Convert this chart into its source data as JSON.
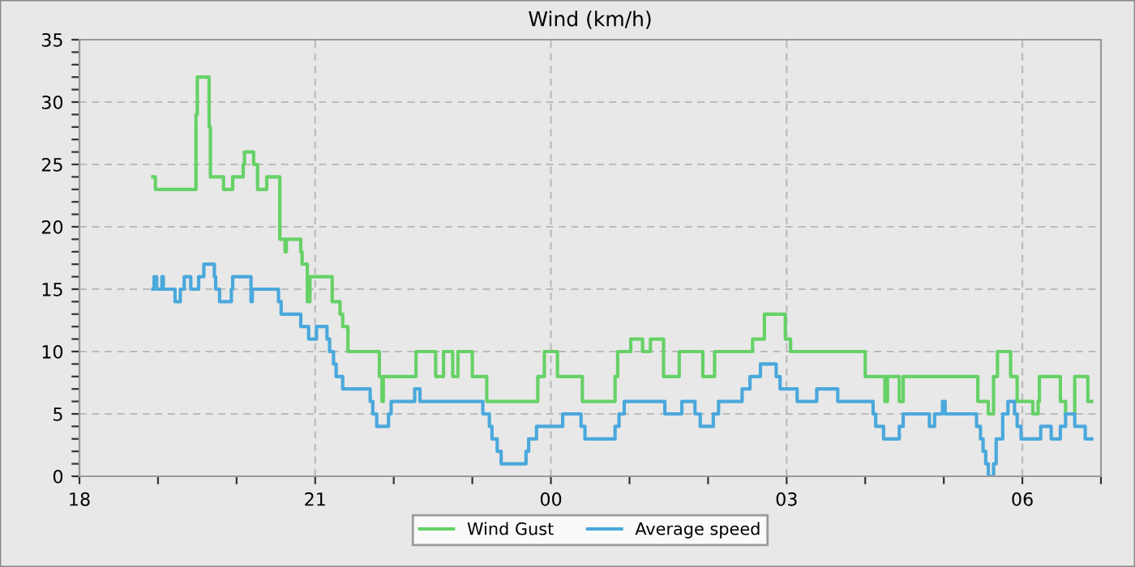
{
  "chart_data": {
    "type": "step",
    "title": "Wind (km/h)",
    "xlim": [
      "2000-01-01T18:00",
      "2000-01-02T07:00"
    ],
    "ylim": [
      0,
      35
    ],
    "xticks": [
      {
        "value": "2000-01-01T18:00",
        "label": "18"
      },
      {
        "value": "2000-01-01T19:00",
        "label": null
      },
      {
        "value": "2000-01-01T20:00",
        "label": null
      },
      {
        "value": "2000-01-01T21:00",
        "label": "21"
      },
      {
        "value": "2000-01-01T22:00",
        "label": null
      },
      {
        "value": "2000-01-01T23:00",
        "label": null
      },
      {
        "value": "2000-01-02T00:00",
        "label": "00"
      },
      {
        "value": "2000-01-02T01:00",
        "label": null
      },
      {
        "value": "2000-01-02T02:00",
        "label": null
      },
      {
        "value": "2000-01-02T03:00",
        "label": "03"
      },
      {
        "value": "2000-01-02T04:00",
        "label": null
      },
      {
        "value": "2000-01-02T05:00",
        "label": null
      },
      {
        "value": "2000-01-02T06:00",
        "label": "06"
      },
      {
        "value": "2000-01-02T07:00",
        "label": null
      }
    ],
    "yticks": [
      0,
      {
        "value": 1,
        "label": null
      },
      {
        "value": 2,
        "label": null
      },
      {
        "value": 3,
        "label": null
      },
      {
        "value": 4,
        "label": null
      },
      5,
      {
        "value": 6,
        "label": null
      },
      {
        "value": 7,
        "label": null
      },
      {
        "value": 8,
        "label": null
      },
      {
        "value": 9,
        "label": null
      },
      10,
      {
        "value": 11,
        "label": null
      },
      {
        "value": 12,
        "label": null
      },
      {
        "value": 13,
        "label": null
      },
      {
        "value": 14,
        "label": null
      },
      15,
      {
        "value": 16,
        "label": null
      },
      {
        "value": 17,
        "label": null
      },
      {
        "value": 18,
        "label": null
      },
      {
        "value": 19,
        "label": null
      },
      20,
      {
        "value": 21,
        "label": null
      },
      {
        "value": 22,
        "label": null
      },
      {
        "value": 23,
        "label": null
      },
      {
        "value": 24,
        "label": null
      },
      25,
      {
        "value": 26,
        "label": null
      },
      {
        "value": 27,
        "label": null
      },
      {
        "value": 28,
        "label": null
      },
      {
        "value": 29,
        "label": null
      },
      30,
      {
        "value": 31,
        "label": null
      },
      {
        "value": 32,
        "label": null
      },
      {
        "value": 33,
        "label": null
      },
      {
        "value": 34,
        "label": null
      },
      35
    ],
    "grid": true,
    "legend": "bottom",
    "line_style": "solid",
    "marker": "none",
    "series": [
      {
        "name": "Wind Gust",
        "color": "#66d166",
        "x": [
          "2000-01-01T18:56",
          "2000-01-01T18:58",
          "2000-01-01T19:29",
          "2000-01-01T19:30",
          "2000-01-01T19:39",
          "2000-01-01T19:40",
          "2000-01-01T19:50",
          "2000-01-01T19:57",
          "2000-01-01T20:05",
          "2000-01-01T20:06",
          "2000-01-01T20:13",
          "2000-01-01T20:16",
          "2000-01-01T20:23",
          "2000-01-01T20:33",
          "2000-01-01T20:37",
          "2000-01-01T20:38",
          "2000-01-01T20:49",
          "2000-01-01T20:50",
          "2000-01-01T20:54",
          "2000-01-01T20:56",
          "2000-01-01T21:13",
          "2000-01-01T21:19",
          "2000-01-01T21:21",
          "2000-01-01T21:25",
          "2000-01-01T21:49",
          "2000-01-01T21:51",
          "2000-01-01T21:52",
          "2000-01-01T22:17",
          "2000-01-01T22:32",
          "2000-01-01T22:38",
          "2000-01-01T22:45",
          "2000-01-01T22:49",
          "2000-01-01T23:00",
          "2000-01-01T23:11",
          "2000-01-01T23:50",
          "2000-01-01T23:55",
          "2000-01-02T00:05",
          "2000-01-02T00:24",
          "2000-01-02T00:49",
          "2000-01-02T00:51",
          "2000-01-02T01:01",
          "2000-01-02T01:10",
          "2000-01-02T01:16",
          "2000-01-02T01:26",
          "2000-01-02T01:38",
          "2000-01-02T01:56",
          "2000-01-02T02:05",
          "2000-01-02T02:34",
          "2000-01-02T02:43",
          "2000-01-02T02:59",
          "2000-01-02T03:03",
          "2000-01-02T04:00",
          "2000-01-02T04:15",
          "2000-01-02T04:17",
          "2000-01-02T04:26",
          "2000-01-02T04:29",
          "2000-01-02T05:26",
          "2000-01-02T05:34",
          "2000-01-02T05:38",
          "2000-01-02T05:41",
          "2000-01-02T05:51",
          "2000-01-02T05:56",
          "2000-01-02T06:08",
          "2000-01-02T06:12",
          "2000-01-02T06:13",
          "2000-01-02T06:29",
          "2000-01-02T06:33",
          "2000-01-02T06:40",
          "2000-01-02T06:50",
          "2000-01-02T06:53"
        ],
        "values": [
          24,
          23,
          29,
          32,
          28,
          24,
          23,
          24,
          25,
          26,
          25,
          23,
          24,
          19,
          18,
          19,
          18,
          17,
          14,
          16,
          14,
          13,
          12,
          10,
          8,
          6,
          8,
          10,
          8,
          10,
          8,
          10,
          8,
          6,
          8,
          10,
          8,
          6,
          8,
          10,
          11,
          10,
          11,
          8,
          10,
          8,
          10,
          11,
          13,
          11,
          10,
          8,
          6,
          8,
          6,
          8,
          6,
          5,
          8,
          10,
          8,
          6,
          5,
          6,
          8,
          6,
          5,
          8,
          6,
          6
        ]
      },
      {
        "name": "Average speed",
        "color": "#4aa8dc",
        "x": [
          "2000-01-01T18:56",
          "2000-01-01T18:57",
          "2000-01-01T18:59",
          "2000-01-01T19:03",
          "2000-01-01T19:04",
          "2000-01-01T19:13",
          "2000-01-01T19:17",
          "2000-01-01T19:20",
          "2000-01-01T19:25",
          "2000-01-01T19:31",
          "2000-01-01T19:35",
          "2000-01-01T19:43",
          "2000-01-01T19:44",
          "2000-01-01T19:47",
          "2000-01-01T19:56",
          "2000-01-01T19:57",
          "2000-01-01T20:11",
          "2000-01-01T20:12",
          "2000-01-01T20:32",
          "2000-01-01T20:34",
          "2000-01-01T20:49",
          "2000-01-01T20:55",
          "2000-01-01T21:01",
          "2000-01-01T21:09",
          "2000-01-01T21:11",
          "2000-01-01T21:14",
          "2000-01-01T21:16",
          "2000-01-01T21:21",
          "2000-01-01T21:42",
          "2000-01-01T21:44",
          "2000-01-01T21:47",
          "2000-01-01T21:56",
          "2000-01-01T21:58",
          "2000-01-01T22:16",
          "2000-01-01T22:20",
          "2000-01-01T23:08",
          "2000-01-01T23:13",
          "2000-01-01T23:15",
          "2000-01-01T23:19",
          "2000-01-01T23:22",
          "2000-01-01T23:41",
          "2000-01-01T23:43",
          "2000-01-01T23:49",
          "2000-01-02T00:09",
          "2000-01-02T00:23",
          "2000-01-02T00:26",
          "2000-01-02T00:49",
          "2000-01-02T00:52",
          "2000-01-02T00:56",
          "2000-01-02T01:27",
          "2000-01-02T01:40",
          "2000-01-02T01:50",
          "2000-01-02T01:54",
          "2000-01-02T02:04",
          "2000-01-02T02:08",
          "2000-01-02T02:26",
          "2000-01-02T02:32",
          "2000-01-02T02:40",
          "2000-01-02T02:52",
          "2000-01-02T02:55",
          "2000-01-02T03:08",
          "2000-01-02T03:23",
          "2000-01-02T03:39",
          "2000-01-02T04:06",
          "2000-01-02T04:08",
          "2000-01-02T04:14",
          "2000-01-02T04:26",
          "2000-01-02T04:29",
          "2000-01-02T04:49",
          "2000-01-02T04:53",
          "2000-01-02T04:59",
          "2000-01-02T05:01",
          "2000-01-02T05:25",
          "2000-01-02T05:28",
          "2000-01-02T05:30",
          "2000-01-02T05:32",
          "2000-01-02T05:34",
          "2000-01-02T05:38",
          "2000-01-02T05:40",
          "2000-01-02T05:45",
          "2000-01-02T05:49",
          "2000-01-02T05:54",
          "2000-01-02T05:56",
          "2000-01-02T05:59",
          "2000-01-02T06:14",
          "2000-01-02T06:22",
          "2000-01-02T06:29",
          "2000-01-02T06:33",
          "2000-01-02T06:40",
          "2000-01-02T06:48",
          "2000-01-02T06:53"
        ],
        "values": [
          15,
          16,
          15,
          16,
          15,
          14,
          15,
          16,
          15,
          16,
          17,
          16,
          15,
          14,
          15,
          16,
          14,
          15,
          14,
          13,
          12,
          11,
          12,
          11,
          10,
          9,
          8,
          7,
          6,
          5,
          4,
          5,
          6,
          7,
          6,
          5,
          4,
          3,
          2,
          1,
          2,
          3,
          4,
          5,
          4,
          3,
          4,
          5,
          6,
          5,
          6,
          5,
          4,
          5,
          6,
          7,
          8,
          9,
          8,
          7,
          6,
          7,
          6,
          5,
          4,
          3,
          4,
          5,
          4,
          5,
          6,
          5,
          4,
          3,
          2,
          1,
          0,
          1,
          3,
          5,
          6,
          5,
          4,
          3,
          4,
          3,
          4,
          5,
          4,
          3,
          3
        ]
      }
    ]
  }
}
